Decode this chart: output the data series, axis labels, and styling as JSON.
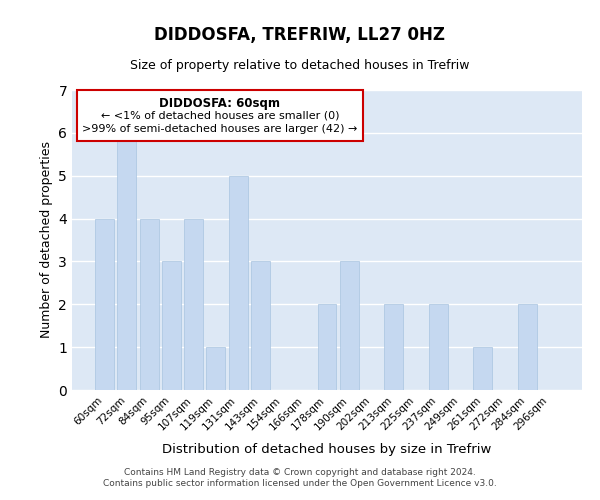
{
  "title": "DIDDOSFA, TREFRIW, LL27 0HZ",
  "subtitle": "Size of property relative to detached houses in Trefriw",
  "xlabel": "Distribution of detached houses by size in Trefriw",
  "ylabel": "Number of detached properties",
  "categories": [
    "60sqm",
    "72sqm",
    "84sqm",
    "95sqm",
    "107sqm",
    "119sqm",
    "131sqm",
    "143sqm",
    "154sqm",
    "166sqm",
    "178sqm",
    "190sqm",
    "202sqm",
    "213sqm",
    "225sqm",
    "237sqm",
    "249sqm",
    "261sqm",
    "272sqm",
    "284sqm",
    "296sqm"
  ],
  "values": [
    4,
    6,
    4,
    3,
    4,
    1,
    5,
    3,
    0,
    0,
    2,
    3,
    0,
    2,
    0,
    2,
    0,
    1,
    0,
    2,
    0
  ],
  "bar_color": "#c5d8f0",
  "bar_edgecolor": "#a8c4e0",
  "ylim": [
    0,
    7
  ],
  "yticks": [
    0,
    1,
    2,
    3,
    4,
    5,
    6,
    7
  ],
  "annotation_title": "DIDDOSFA: 60sqm",
  "annotation_line1": "← <1% of detached houses are smaller (0)",
  "annotation_line2": ">99% of semi-detached houses are larger (42) →",
  "annotation_box_color": "#ffffff",
  "annotation_box_edgecolor": "#cc0000",
  "footer_line1": "Contains HM Land Registry data © Crown copyright and database right 2024.",
  "footer_line2": "Contains public sector information licensed under the Open Government Licence v3.0.",
  "bg_color": "#dde8f5",
  "grid_color": "#ffffff"
}
